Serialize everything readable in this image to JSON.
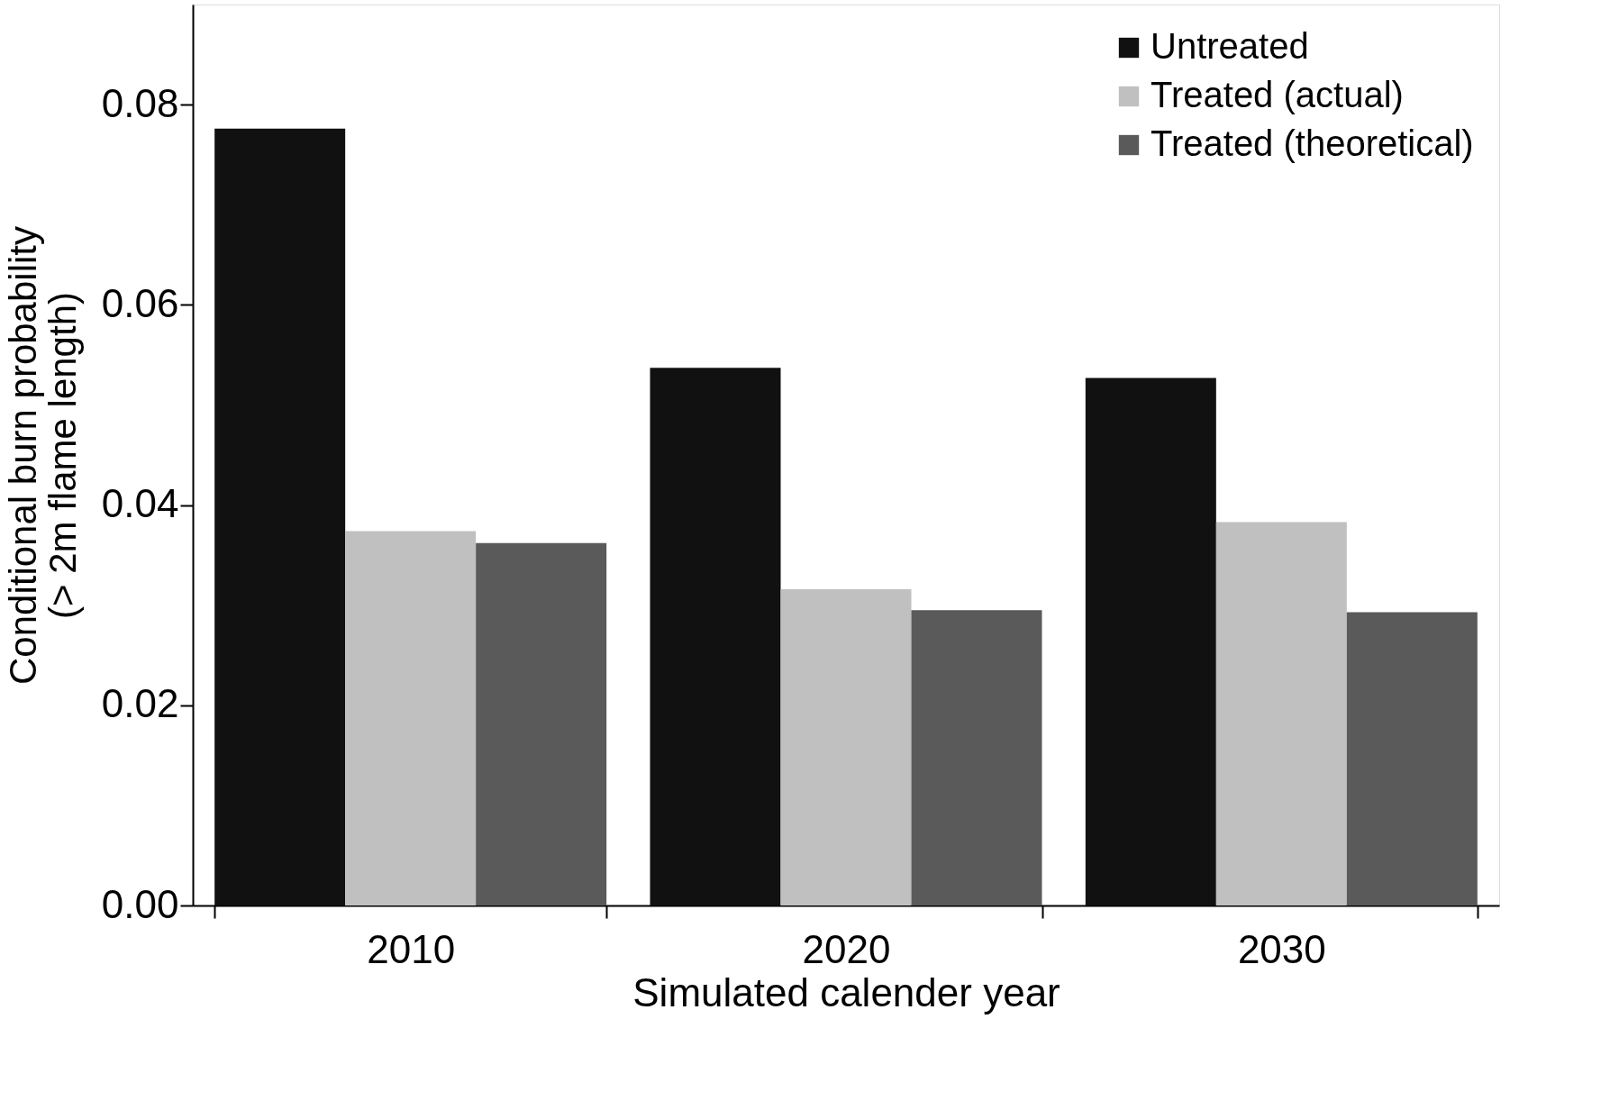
{
  "chart_data": {
    "type": "bar",
    "xlabel": "Simulated calender year",
    "ylabel": "Conditional burn probability\n(> 2m flame length)",
    "categories": [
      "2010",
      "2020",
      "2030"
    ],
    "series": [
      {
        "name": "Untreated",
        "color": "#111111",
        "values": [
          0.0776,
          0.0537,
          0.0527
        ]
      },
      {
        "name": "Treated (actual)",
        "color": "#c0c0c0",
        "values": [
          0.0374,
          0.0316,
          0.0383
        ]
      },
      {
        "name": "Treated (theoretical)",
        "color": "#5a5a5a",
        "values": [
          0.0362,
          0.0295,
          0.0293
        ]
      }
    ],
    "ylim": [
      0,
      0.09
    ],
    "yticks": [
      {
        "value": 0,
        "label": "0.00"
      },
      {
        "value": 0.02,
        "label": "0.02"
      },
      {
        "value": 0.04,
        "label": "0.04"
      },
      {
        "value": 0.06,
        "label": "0.06"
      },
      {
        "value": 0.08,
        "label": "0.08"
      }
    ],
    "grid": false,
    "legend": "top right"
  }
}
